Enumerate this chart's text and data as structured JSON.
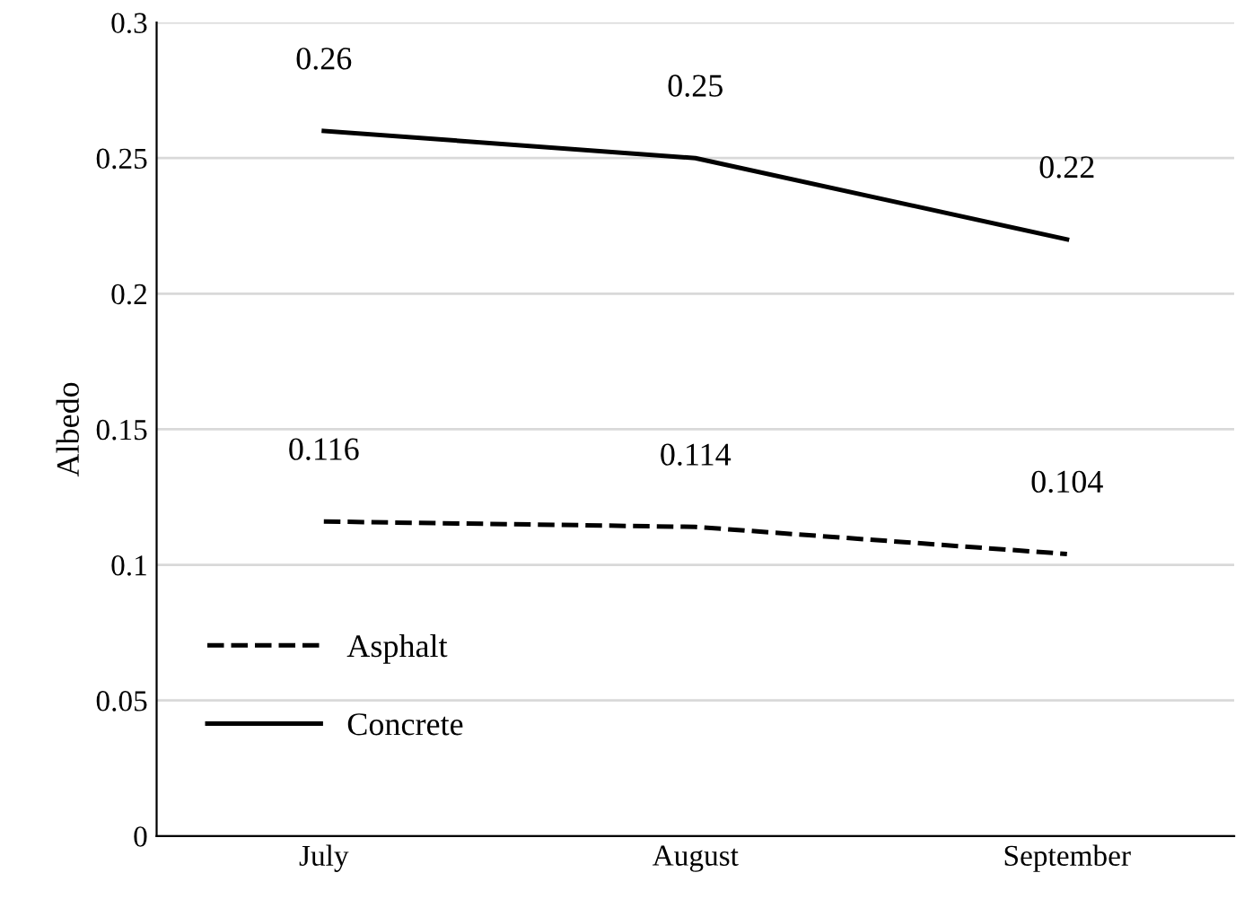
{
  "chart_data": {
    "type": "line",
    "ylabel": "Albedo",
    "categories": [
      "July",
      "August",
      "September"
    ],
    "series": [
      {
        "name": "Asphalt",
        "color": "#000000",
        "values": [
          0.116,
          0.114,
          0.104
        ],
        "line_style": "dashed"
      },
      {
        "name": "Concrete",
        "color": "#000000",
        "values": [
          0.26,
          0.25,
          0.22
        ],
        "line_style": "solid"
      }
    ],
    "ylim": [
      0,
      0.3
    ],
    "yticks": [
      0,
      0.05,
      0.1,
      0.15,
      0.2,
      0.25,
      0.3
    ],
    "grid": "y",
    "legend": "bottom left",
    "data_labels": true,
    "marker": "none"
  }
}
